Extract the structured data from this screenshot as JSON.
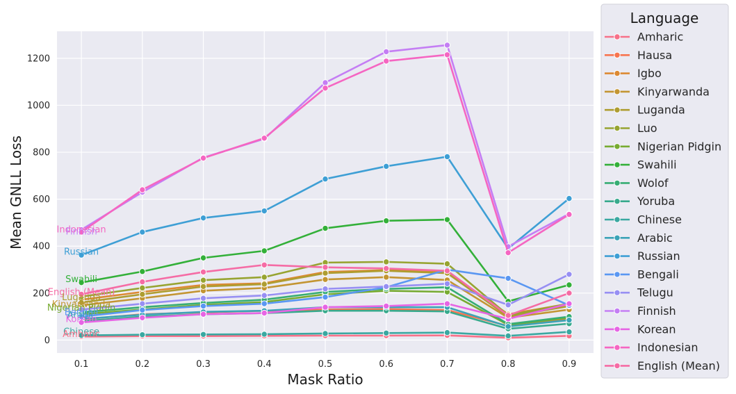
{
  "chart_data": {
    "type": "line",
    "xlabel": "Mask Ratio",
    "ylabel": "Mean GNLL Loss",
    "x": [
      0.1,
      0.2,
      0.3,
      0.4,
      0.5,
      0.6,
      0.7,
      0.8,
      0.9
    ],
    "xlim": [
      0.06,
      0.94
    ],
    "ylim": [
      -55,
      1315
    ],
    "yticks": [
      0,
      200,
      400,
      600,
      800,
      1000,
      1200
    ],
    "grid": true,
    "legend": {
      "title": "Language",
      "placement": "right"
    },
    "series": [
      {
        "name": "Amharic",
        "color": "#f77189",
        "values": [
          15,
          17,
          17,
          18,
          19,
          19,
          20,
          10,
          18
        ]
      },
      {
        "name": "Hausa",
        "color": "#f7754f",
        "values": [
          88,
          110,
          118,
          125,
          130,
          132,
          128,
          60,
          90
        ]
      },
      {
        "name": "Igbo",
        "color": "#dc8932",
        "values": [
          172,
          205,
          235,
          242,
          290,
          298,
          290,
          110,
          155
        ]
      },
      {
        "name": "Kinyarwanda",
        "color": "#c39532",
        "values": [
          148,
          178,
          210,
          222,
          258,
          268,
          256,
          95,
          130
        ]
      },
      {
        "name": "Luganda",
        "color": "#ae9d31",
        "values": [
          160,
          195,
          228,
          238,
          285,
          295,
          285,
          100,
          145
        ]
      },
      {
        "name": "Luo",
        "color": "#97a431",
        "values": [
          185,
          222,
          255,
          268,
          330,
          333,
          325,
          105,
          155
        ]
      },
      {
        "name": "Nigerian Pidgin",
        "color": "#77ab31",
        "values": [
          110,
          130,
          150,
          162,
          195,
          210,
          205,
          65,
          95
        ]
      },
      {
        "name": "Swahili",
        "color": "#33b039",
        "values": [
          245,
          292,
          350,
          380,
          476,
          508,
          513,
          165,
          235
        ]
      },
      {
        "name": "Wolof",
        "color": "#36ad73",
        "values": [
          118,
          140,
          158,
          172,
          205,
          218,
          225,
          68,
          100
        ]
      },
      {
        "name": "Yoruba",
        "color": "#38aa8d",
        "values": [
          80,
          100,
          110,
          115,
          125,
          125,
          122,
          48,
          70
        ]
      },
      {
        "name": "Chinese",
        "color": "#3aa8a1",
        "values": [
          20,
          23,
          24,
          25,
          28,
          30,
          32,
          18,
          35
        ]
      },
      {
        "name": "Arabic",
        "color": "#3ba3b7",
        "values": [
          90,
          108,
          120,
          125,
          140,
          140,
          140,
          58,
          85
        ]
      },
      {
        "name": "Russian",
        "color": "#3e9fd5",
        "values": [
          362,
          460,
          520,
          550,
          686,
          740,
          781,
          390,
          603
        ]
      },
      {
        "name": "Bengali",
        "color": "#5a97f2",
        "values": [
          100,
          128,
          145,
          155,
          183,
          225,
          300,
          263,
          148
        ]
      },
      {
        "name": "Telugu",
        "color": "#978ff3",
        "values": [
          130,
          155,
          178,
          190,
          218,
          228,
          240,
          150,
          280
        ]
      },
      {
        "name": "Finnish",
        "color": "#c47ef4",
        "values": [
          470,
          630,
          777,
          857,
          1096,
          1228,
          1256,
          398,
          538
        ]
      },
      {
        "name": "Korean",
        "color": "#e665e4",
        "values": [
          75,
          95,
          110,
          115,
          140,
          145,
          155,
          90,
          155
        ]
      },
      {
        "name": "Indonesian",
        "color": "#f566c2",
        "values": [
          460,
          640,
          775,
          860,
          1073,
          1188,
          1215,
          372,
          535
        ]
      },
      {
        "name": "English (Mean)",
        "color": "#f56ca5",
        "values": [
          195,
          248,
          290,
          320,
          310,
          305,
          295,
          105,
          200
        ]
      }
    ],
    "end_labels": [
      {
        "text": "Indonesian",
        "color": "#f566c2",
        "y": 470
      },
      {
        "text": "Finnish",
        "color": "#c47ef4",
        "y": 462
      },
      {
        "text": "Russian",
        "color": "#3e9fd5",
        "y": 375
      },
      {
        "text": "Swahili",
        "color": "#33b039",
        "y": 258
      },
      {
        "text": "English (Mean)",
        "color": "#f56ca5",
        "y": 204
      },
      {
        "text": "Luganda",
        "color": "#ae9d31",
        "y": 182
      },
      {
        "text": "Kinyarwanda",
        "color": "#c39532",
        "y": 152
      },
      {
        "text": "Nigerian Pidgin",
        "color": "#77ab31",
        "y": 138
      },
      {
        "text": "Bengali",
        "color": "#5a97f2",
        "y": 118
      },
      {
        "text": "Arabic",
        "color": "#3ba3b7",
        "y": 106
      },
      {
        "text": "Korean",
        "color": "#e665e4",
        "y": 88
      },
      {
        "text": "Chinese",
        "color": "#3aa8a1",
        "y": 35
      },
      {
        "text": "Amharic",
        "color": "#f77189",
        "y": 25
      }
    ]
  }
}
